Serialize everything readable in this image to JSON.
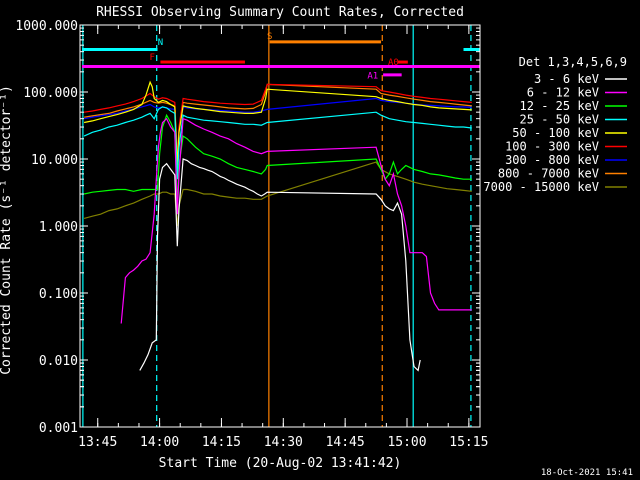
{
  "chart_data": {
    "type": "line",
    "title": "RHESSI Observing Summary Count Rates, Corrected",
    "xlabel": "Start Time (20-Aug-02 13:41:42)",
    "ylabel": "Corrected Count Rate (s⁻¹ detector⁻¹)",
    "yscale": "log",
    "ylim": [
      0.001,
      1000
    ],
    "xlim_minutes_after_start": [
      -1,
      96
    ],
    "x_ticks": [
      {
        "label": "13:45",
        "t": 3.3
      },
      {
        "label": "14:00",
        "t": 18.3
      },
      {
        "label": "14:15",
        "t": 33.3
      },
      {
        "label": "14:30",
        "t": 48.3
      },
      {
        "label": "14:45",
        "t": 63.3
      },
      {
        "label": "15:00",
        "t": 78.3
      },
      {
        "label": "15:15",
        "t": 93.3
      }
    ],
    "y_ticks": [
      "1000.000",
      "100.000",
      "10.000",
      "1.000",
      "0.100",
      "0.010",
      "0.001"
    ],
    "legend_title": "Det 1,3,4,5,6,9",
    "legend_placement": "right",
    "footer": "18-Oct-2021 15:41",
    "series": [
      {
        "name": "3 - 6 keV",
        "color": "#ffffff",
        "x": [
          13.5,
          14.5,
          15.5,
          16.5,
          17.5,
          17.8,
          18.3,
          19.0,
          20.0,
          21.0,
          22.0,
          22.6,
          23.0,
          24.0,
          25.0,
          26.0,
          27.0,
          28.0,
          29.0,
          30.0,
          31.0,
          32.0,
          33.0,
          34.0,
          35.0,
          36.0,
          37.0,
          38.0,
          39.0,
          40.0,
          41.0,
          42.0,
          43.0,
          43.8,
          44.4,
          70.8,
          72.0,
          73.0,
          74.0,
          75.0,
          76.0,
          77.0,
          78.0,
          79.0,
          80.0,
          81.0,
          81.5
        ],
        "y": [
          0.007,
          0.009,
          0.012,
          0.018,
          0.02,
          0.7,
          5.0,
          7.5,
          8.5,
          7.0,
          5.8,
          0.5,
          1.8,
          10.0,
          9.5,
          8.5,
          8.0,
          7.5,
          7.2,
          6.8,
          6.5,
          6.0,
          5.5,
          5.2,
          4.8,
          4.5,
          4.2,
          4.0,
          3.8,
          3.5,
          3.3,
          3.0,
          2.8,
          3.0,
          3.2,
          3.0,
          2.5,
          2.0,
          1.8,
          1.7,
          2.2,
          1.5,
          0.3,
          0.02,
          0.008,
          0.007,
          0.01
        ]
      },
      {
        "name": "6 - 12 keV",
        "color": "#ff00ff",
        "x": [
          9.0,
          10.0,
          11.0,
          12.0,
          13.0,
          14.0,
          15.0,
          16.0,
          17.0,
          17.5,
          18.0,
          18.5,
          19.0,
          20.0,
          21.0,
          22.0,
          22.6,
          23.0,
          24.0,
          25.0,
          27.0,
          29.0,
          31.0,
          33.0,
          35.0,
          37.0,
          39.0,
          41.0,
          43.0,
          44.4,
          70.8,
          72.0,
          73.0,
          74.0,
          75.0,
          76.0,
          77.0,
          78.0,
          79.0,
          80.0,
          81.0,
          82.0,
          83.0,
          84.0,
          85.0,
          86.0,
          88.0,
          90.0,
          92.0,
          94.0
        ],
        "y": [
          0.035,
          0.17,
          0.2,
          0.22,
          0.25,
          0.3,
          0.32,
          0.4,
          1.5,
          5.0,
          15.0,
          25.0,
          35.0,
          40.0,
          30.0,
          25.0,
          1.5,
          6.0,
          40.0,
          38.0,
          32.0,
          28.0,
          25.0,
          22.0,
          20.0,
          17.0,
          15.0,
          13.0,
          12.0,
          13.0,
          15.0,
          8.0,
          5.0,
          4.0,
          6.0,
          3.0,
          2.0,
          1.0,
          0.4,
          0.4,
          0.4,
          0.4,
          0.35,
          0.1,
          0.07,
          0.056,
          0.056,
          0.056,
          0.056,
          0.056
        ]
      },
      {
        "name": "12 - 25 keV",
        "color": "#00ff00",
        "x": [
          0.0,
          2.0,
          4.0,
          6.0,
          8.0,
          10.0,
          12.0,
          14.0,
          16.0,
          17.0,
          17.8,
          18.3,
          19.0,
          20.0,
          21.0,
          22.0,
          22.6,
          23.0,
          24.0,
          25.0,
          27.0,
          29.0,
          31.0,
          33.0,
          35.0,
          37.0,
          39.0,
          41.0,
          43.0,
          44.0,
          44.4,
          70.8,
          72.0,
          73.0,
          74.0,
          75.0,
          76.0,
          77.0,
          78.0,
          79.0,
          80.0,
          82.0,
          84.0,
          86.0,
          88.0,
          90.0,
          92.0,
          94.0
        ],
        "y": [
          3.0,
          3.2,
          3.3,
          3.4,
          3.5,
          3.5,
          3.3,
          3.5,
          3.5,
          3.5,
          3.5,
          12.0,
          30.0,
          45.0,
          35.0,
          25.0,
          2.0,
          8.0,
          22.0,
          20.0,
          15.0,
          12.0,
          11.0,
          10.0,
          8.5,
          7.5,
          7.0,
          6.5,
          6.0,
          7.0,
          8.0,
          10.0,
          7.0,
          5.0,
          6.0,
          9.0,
          6.0,
          7.0,
          8.0,
          7.5,
          7.0,
          6.5,
          6.0,
          5.8,
          5.5,
          5.2,
          5.0,
          5.0
        ]
      },
      {
        "name": "25 - 50 keV",
        "color": "#00ffff",
        "x": [
          0.0,
          2.0,
          4.0,
          6.0,
          8.0,
          10.0,
          12.0,
          14.0,
          15.0,
          16.0,
          17.0,
          18.0,
          19.0,
          20.0,
          21.0,
          22.0,
          22.6,
          23.0,
          24.0,
          25.0,
          27.0,
          29.0,
          31.0,
          33.0,
          35.0,
          37.0,
          39.0,
          41.0,
          43.0,
          44.4,
          70.8,
          72.0,
          74.0,
          76.0,
          78.0,
          80.0,
          82.0,
          84.0,
          86.0,
          88.0,
          90.0,
          92.0,
          94.0
        ],
        "y": [
          22.0,
          25.0,
          27.0,
          30.0,
          32.0,
          35.0,
          38.0,
          42.0,
          45.0,
          48.0,
          40.0,
          55.0,
          60.0,
          58.0,
          52.0,
          48.0,
          5.0,
          15.0,
          45.0,
          42.0,
          40.0,
          38.0,
          37.0,
          36.0,
          35.0,
          34.0,
          33.0,
          33.0,
          32.0,
          35.0,
          50.0,
          45.0,
          40.0,
          38.0,
          36.0,
          35.0,
          34.0,
          33.0,
          32.0,
          31.0,
          30.0,
          30.0,
          29.0
        ]
      },
      {
        "name": "50 - 100 keV",
        "color": "#ffff00",
        "x": [
          0.0,
          2.0,
          4.0,
          6.0,
          8.0,
          10.0,
          12.0,
          14.0,
          15.0,
          16.0,
          16.5,
          17.0,
          18.0,
          19.0,
          20.0,
          21.0,
          22.0,
          22.6,
          23.0,
          24.0,
          25.0,
          27.0,
          29.0,
          31.0,
          33.0,
          35.0,
          37.0,
          39.0,
          41.0,
          43.0,
          44.0,
          44.4,
          70.8,
          72.0,
          74.0,
          76.0,
          78.0,
          80.0,
          82.0,
          84.0,
          86.0,
          88.0,
          90.0,
          92.0,
          94.0
        ],
        "y": [
          35.0,
          37.0,
          40.0,
          43.0,
          46.0,
          50.0,
          55.0,
          65.0,
          90.0,
          140.0,
          120.0,
          80.0,
          70.0,
          75.0,
          72.0,
          65.0,
          60.0,
          8.0,
          25.0,
          62.0,
          60.0,
          57.0,
          55.0,
          53.0,
          51.0,
          50.0,
          49.0,
          48.0,
          48.0,
          50.0,
          80.0,
          110.0,
          85.0,
          80.0,
          75.0,
          72.0,
          68.0,
          65.0,
          63.0,
          60.0,
          58.0,
          57.0,
          56.0,
          55.0,
          54.0
        ]
      },
      {
        "name": "100 - 300 keV",
        "color": "#ff0000",
        "x": [
          0.0,
          2.0,
          4.0,
          6.0,
          8.0,
          10.0,
          12.0,
          14.0,
          16.0,
          17.0,
          18.0,
          19.0,
          20.0,
          21.0,
          22.0,
          22.6,
          23.0,
          24.0,
          25.0,
          27.0,
          29.0,
          31.0,
          33.0,
          35.0,
          37.0,
          39.0,
          41.0,
          43.0,
          44.0,
          44.4,
          70.8,
          72.0,
          74.0,
          76.0,
          78.0,
          80.0,
          82.0,
          84.0,
          86.0,
          88.0,
          90.0,
          92.0,
          94.0
        ],
        "y": [
          50.0,
          52.0,
          55.0,
          58.0,
          62.0,
          66.0,
          72.0,
          80.0,
          95.0,
          85.0,
          78.0,
          82.0,
          80.0,
          75.0,
          70.0,
          10.0,
          30.0,
          80.0,
          78.0,
          75.0,
          72.0,
          70.0,
          68.0,
          67.0,
          66.0,
          65.0,
          66.0,
          75.0,
          110.0,
          130.0,
          120.0,
          105.0,
          100.0,
          95.0,
          90.0,
          86.0,
          83.0,
          80.0,
          78.0,
          76.0,
          74.0,
          72.0,
          70.0
        ]
      },
      {
        "name": "300 - 800 keV",
        "color": "#0000ff",
        "x": [
          0.0,
          2.0,
          4.0,
          6.0,
          8.0,
          10.0,
          12.0,
          14.0,
          16.0,
          17.0,
          18.0,
          19.0,
          20.0,
          21.0,
          22.0,
          22.6,
          23.0,
          24.0,
          25.0,
          27.0,
          29.0,
          31.0,
          33.0,
          35.0,
          37.0,
          39.0,
          41.0,
          43.0,
          44.4,
          70.8,
          72.0,
          74.0,
          76.0,
          78.0,
          80.0,
          82.0,
          84.0,
          86.0,
          88.0,
          90.0,
          92.0,
          94.0
        ],
        "y": [
          40.0,
          42.0,
          44.0,
          46.0,
          48.0,
          52.0,
          56.0,
          60.0,
          65.0,
          60.0,
          58.0,
          60.0,
          58.0,
          56.0,
          55.0,
          8.0,
          25.0,
          60.0,
          58.0,
          56.0,
          55.0,
          54.0,
          53.0,
          52.0,
          51.0,
          50.0,
          50.0,
          52.0,
          55.0,
          80.0,
          75.0,
          72.0,
          70.0,
          68.0,
          66.0,
          64.0,
          63.0,
          62.0,
          61.0,
          60.0,
          60.0,
          59.0
        ]
      },
      {
        "name": "800 - 7000 keV",
        "color": "#ff8000",
        "x": [
          0.0,
          2.0,
          4.0,
          6.0,
          8.0,
          10.0,
          12.0,
          14.0,
          16.0,
          17.0,
          18.0,
          19.0,
          20.0,
          21.0,
          22.0,
          22.6,
          23.0,
          24.0,
          25.0,
          27.0,
          29.0,
          31.0,
          33.0,
          35.0,
          37.0,
          39.0,
          41.0,
          43.0,
          44.0,
          44.4,
          70.8,
          72.0,
          74.0,
          76.0,
          78.0,
          80.0,
          82.0,
          84.0,
          86.0,
          88.0,
          90.0,
          92.0,
          94.0
        ],
        "y": [
          42.0,
          44.0,
          46.0,
          48.0,
          52.0,
          56.0,
          60.0,
          66.0,
          75.0,
          70.0,
          68.0,
          70.0,
          68.0,
          65.0,
          62.0,
          9.0,
          28.0,
          70.0,
          68.0,
          66.0,
          64.0,
          62.0,
          60.0,
          58.0,
          57.0,
          56.0,
          57.0,
          65.0,
          100.0,
          130.0,
          110.0,
          95.0,
          90.0,
          86.0,
          82.0,
          78.0,
          75.0,
          72.0,
          70.0,
          68.0,
          66.0,
          64.0,
          62.0
        ]
      },
      {
        "name": "7000 - 15000 keV",
        "color": "#808000",
        "x": [
          0.0,
          2.0,
          4.0,
          6.0,
          8.0,
          10.0,
          12.0,
          14.0,
          16.0,
          17.0,
          18.0,
          19.0,
          20.0,
          21.0,
          22.0,
          22.6,
          23.0,
          24.0,
          25.0,
          27.0,
          29.0,
          31.0,
          33.0,
          35.0,
          37.0,
          39.0,
          41.0,
          43.0,
          44.4,
          70.8,
          72.0,
          74.0,
          76.0,
          78.0,
          80.0,
          82.0,
          84.0,
          86.0,
          88.0,
          90.0,
          92.0,
          94.0
        ],
        "y": [
          1.3,
          1.4,
          1.5,
          1.7,
          1.8,
          2.0,
          2.2,
          2.5,
          2.8,
          3.0,
          3.0,
          3.2,
          3.2,
          3.0,
          3.0,
          1.0,
          2.0,
          3.5,
          3.5,
          3.3,
          3.0,
          3.0,
          2.8,
          2.7,
          2.6,
          2.6,
          2.5,
          2.5,
          2.8,
          9.0,
          7.0,
          6.0,
          5.5,
          5.0,
          4.5,
          4.2,
          4.0,
          3.8,
          3.6,
          3.5,
          3.4,
          3.3
        ]
      }
    ],
    "flag_bars": [
      {
        "label": "",
        "color": "#00ffff",
        "y": 430,
        "segments": [
          [
            -0.5,
            17.8
          ],
          [
            92.0,
            96.0
          ]
        ]
      },
      {
        "label": "N",
        "color": "#00ffff",
        "label_t": 18.5,
        "label_y": 500,
        "segments": []
      },
      {
        "label": "F",
        "color": "#ff0000",
        "y": 280,
        "label_t": 16.5,
        "label_y": 300,
        "segments": [
          [
            18.5,
            39.0
          ]
        ]
      },
      {
        "label": "S",
        "color": "#ff8000",
        "y": 560,
        "label_t": 45.0,
        "label_y": 620,
        "segments": [
          [
            45.0,
            72.0
          ]
        ]
      },
      {
        "label": "A1",
        "color": "#ff00ff",
        "y": 180,
        "label_t": 70.0,
        "label_y": 160,
        "segments": [
          [
            72.5,
            77.0
          ]
        ]
      },
      {
        "label": "A0",
        "color": "#ff0000",
        "y": 280,
        "label_t": 75.0,
        "label_y": 255,
        "segments": [
          [
            76.0,
            78.5
          ]
        ]
      },
      {
        "label": "",
        "color": "#ff00ff",
        "y": 240,
        "segments": [
          [
            -0.5,
            96.0
          ]
        ]
      }
    ],
    "vertical_lines": [
      {
        "t": -0.3,
        "color": "#00ffff",
        "style": "solid"
      },
      {
        "t": 17.6,
        "color": "#00ffff",
        "style": "dashed"
      },
      {
        "t": 44.8,
        "color": "#ff8000",
        "style": "solid"
      },
      {
        "t": 72.3,
        "color": "#ff8000",
        "style": "dashed"
      },
      {
        "t": 79.8,
        "color": "#00ffff",
        "style": "solid"
      },
      {
        "t": 93.8,
        "color": "#00ffff",
        "style": "dashed"
      }
    ]
  }
}
